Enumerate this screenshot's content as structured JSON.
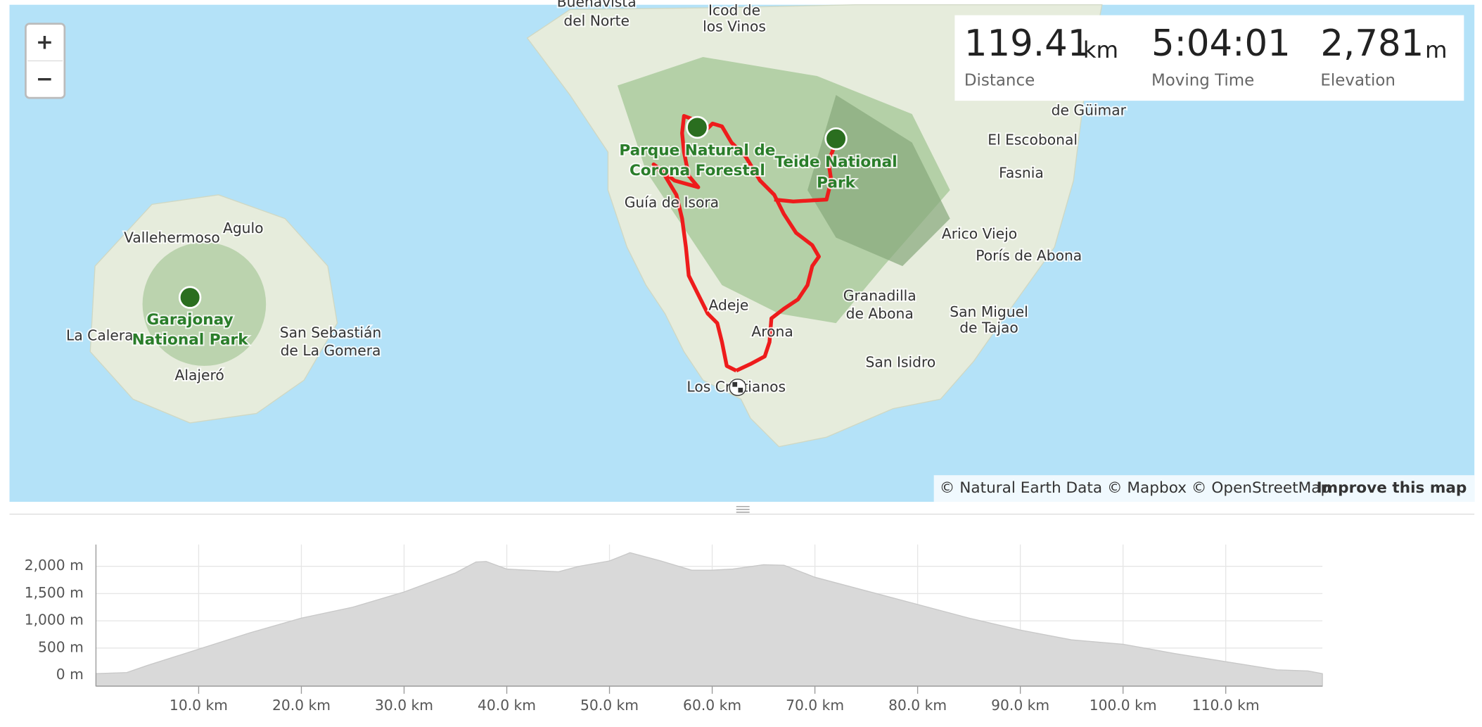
{
  "map": {
    "zoom_in": "+",
    "zoom_out": "−",
    "labels": [
      "Buenavista",
      "del Norte",
      "Icod de",
      "los Vinos",
      "de Güimar",
      "El Escobonal",
      "Fasnia",
      "Arico Viejo",
      "Porís de Abona",
      "San Miguel",
      "de Tajao",
      "Granadilla",
      "de Abona",
      "San Isidro",
      "Arona",
      "Adeje",
      "Los Cristianos",
      "Guía de Isora",
      "Vallehermoso",
      "Agulo",
      "La Calera",
      "San Sebastián",
      "de La Gomera",
      "Alajeró"
    ],
    "parks": [
      "Parque Natural de",
      "Corona Forestal",
      "Teide National",
      "Park",
      "Garajonay",
      "National Park"
    ],
    "attribution": "© Natural Earth Data © Mapbox © OpenStreetMap",
    "attribution_link": "Improve this map"
  },
  "stats": [
    {
      "value": "119.41",
      "unit": "km",
      "label": "Distance"
    },
    {
      "value": "5:04:01",
      "label": "Moving Time"
    },
    {
      "value": "2,781",
      "unit": "m",
      "label": "Elevation"
    }
  ],
  "chart_data": {
    "type": "area",
    "color": "#d9d9d9",
    "x": [
      0,
      3,
      5,
      10,
      15,
      20,
      25,
      30,
      35,
      37,
      38,
      40,
      42,
      45,
      47,
      50,
      52,
      55,
      58,
      60,
      62,
      65,
      67,
      70,
      75,
      80,
      85,
      90,
      95,
      100,
      105,
      110,
      115,
      118,
      119.41
    ],
    "values": [
      30,
      50,
      180,
      480,
      780,
      1050,
      1250,
      1530,
      1880,
      2080,
      2090,
      1950,
      1930,
      1900,
      2000,
      2100,
      2250,
      2100,
      1930,
      1930,
      1950,
      2030,
      2020,
      1800,
      1550,
      1300,
      1050,
      830,
      650,
      570,
      400,
      250,
      100,
      80,
      30
    ],
    "xlim": [
      0,
      119.41
    ],
    "ylim": [
      -200,
      2400
    ],
    "xticks": [
      {
        "value": 10,
        "label": "10.0 km"
      },
      {
        "value": 20,
        "label": "20.0 km"
      },
      {
        "value": 30,
        "label": "30.0 km"
      },
      {
        "value": 40,
        "label": "40.0 km"
      },
      {
        "value": 50,
        "label": "50.0 km"
      },
      {
        "value": 60,
        "label": "60.0 km"
      },
      {
        "value": 70,
        "label": "70.0 km"
      },
      {
        "value": 80,
        "label": "80.0 km"
      },
      {
        "value": 90,
        "label": "90.0 km"
      },
      {
        "value": 100,
        "label": "100.0 km"
      },
      {
        "value": 110,
        "label": "110.0 km"
      }
    ],
    "yticks": [
      {
        "value": 0,
        "label": "0 m"
      },
      {
        "value": 500,
        "label": "500 m"
      },
      {
        "value": 1000,
        "label": "1,000 m"
      },
      {
        "value": 1500,
        "label": "1,500 m"
      },
      {
        "value": 2000,
        "label": "2,000 m"
      }
    ]
  }
}
